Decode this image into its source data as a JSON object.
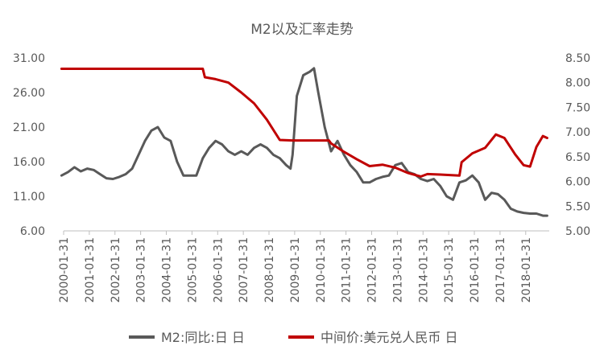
{
  "chart_data": {
    "type": "line",
    "title": "M2以及汇率走势",
    "x_tick_labels": [
      "2000-01-31",
      "2001-01-31",
      "2002-01-31",
      "2003-01-31",
      "2004-01-31",
      "2005-01-31",
      "2006-01-31",
      "2007-01-31",
      "2008-01-31",
      "2009-01-31",
      "2010-01-31",
      "2011-01-31",
      "2012-01-31",
      "2013-01-31",
      "2014-01-31",
      "2015-01-31",
      "2016-01-31",
      "2017-01-31",
      "2018-01-31"
    ],
    "xlim": [
      "2000-01-31",
      "2018-12-31"
    ],
    "y_left": {
      "ticks": [
        "31.00",
        "26.00",
        "21.00",
        "16.00",
        "11.00",
        "6.00"
      ],
      "range": [
        6,
        31
      ]
    },
    "y_right": {
      "ticks": [
        "8.50",
        "8.00",
        "7.50",
        "7.00",
        "6.50",
        "6.00",
        "5.50",
        "5.00"
      ],
      "range": [
        5,
        8.5
      ]
    },
    "grid": false,
    "legend_position": "bottom",
    "series": [
      {
        "name": "M2:同比:日 日",
        "axis": "left",
        "color": "#595959",
        "points": [
          [
            "2000-01",
            14.0
          ],
          [
            "2000-04",
            14.5
          ],
          [
            "2000-07",
            15.2
          ],
          [
            "2000-10",
            14.6
          ],
          [
            "2001-01",
            15.0
          ],
          [
            "2001-04",
            14.8
          ],
          [
            "2001-07",
            14.2
          ],
          [
            "2001-10",
            13.6
          ],
          [
            "2002-01",
            13.5
          ],
          [
            "2002-04",
            13.8
          ],
          [
            "2002-07",
            14.2
          ],
          [
            "2002-10",
            15.0
          ],
          [
            "2003-01",
            17.0
          ],
          [
            "2003-04",
            19.0
          ],
          [
            "2003-07",
            20.5
          ],
          [
            "2003-10",
            21.0
          ],
          [
            "2004-01",
            19.5
          ],
          [
            "2004-04",
            19.0
          ],
          [
            "2004-07",
            16.0
          ],
          [
            "2004-10",
            14.0
          ],
          [
            "2005-01",
            14.0
          ],
          [
            "2005-04",
            14.0
          ],
          [
            "2005-07",
            16.5
          ],
          [
            "2005-10",
            18.0
          ],
          [
            "2006-01",
            19.0
          ],
          [
            "2006-04",
            18.5
          ],
          [
            "2006-07",
            17.5
          ],
          [
            "2006-10",
            17.0
          ],
          [
            "2007-01",
            17.5
          ],
          [
            "2007-04",
            17.0
          ],
          [
            "2007-07",
            18.0
          ],
          [
            "2007-10",
            18.5
          ],
          [
            "2008-01",
            18.0
          ],
          [
            "2008-04",
            17.0
          ],
          [
            "2008-07",
            16.5
          ],
          [
            "2008-10",
            15.5
          ],
          [
            "2008-12",
            15.0
          ],
          [
            "2009-01",
            17.0
          ],
          [
            "2009-03",
            25.5
          ],
          [
            "2009-06",
            28.5
          ],
          [
            "2009-09",
            29.0
          ],
          [
            "2009-11",
            29.5
          ],
          [
            "2010-01",
            26.0
          ],
          [
            "2010-04",
            21.0
          ],
          [
            "2010-07",
            17.5
          ],
          [
            "2010-10",
            19.0
          ],
          [
            "2011-01",
            17.0
          ],
          [
            "2011-04",
            15.5
          ],
          [
            "2011-07",
            14.5
          ],
          [
            "2011-10",
            13.0
          ],
          [
            "2012-01",
            13.0
          ],
          [
            "2012-04",
            13.5
          ],
          [
            "2012-07",
            13.8
          ],
          [
            "2012-10",
            14.0
          ],
          [
            "2013-01",
            15.5
          ],
          [
            "2013-04",
            15.8
          ],
          [
            "2013-07",
            14.5
          ],
          [
            "2013-10",
            14.2
          ],
          [
            "2014-01",
            13.5
          ],
          [
            "2014-04",
            13.2
          ],
          [
            "2014-07",
            13.5
          ],
          [
            "2014-10",
            12.5
          ],
          [
            "2015-01",
            11.0
          ],
          [
            "2015-04",
            10.5
          ],
          [
            "2015-07",
            13.0
          ],
          [
            "2015-10",
            13.3
          ],
          [
            "2016-01",
            14.0
          ],
          [
            "2016-04",
            13.0
          ],
          [
            "2016-07",
            10.5
          ],
          [
            "2016-10",
            11.5
          ],
          [
            "2017-01",
            11.3
          ],
          [
            "2017-04",
            10.5
          ],
          [
            "2017-07",
            9.2
          ],
          [
            "2017-10",
            8.8
          ],
          [
            "2018-01",
            8.6
          ],
          [
            "2018-04",
            8.5
          ],
          [
            "2018-07",
            8.5
          ],
          [
            "2018-10",
            8.2
          ],
          [
            "2018-12",
            8.2
          ]
        ]
      },
      {
        "name": "中间价:美元兑人民币 日",
        "axis": "right",
        "color": "#c00000",
        "points": [
          [
            "2000-01",
            8.28
          ],
          [
            "2005-07",
            8.28
          ],
          [
            "2005-08",
            8.11
          ],
          [
            "2006-01",
            8.07
          ],
          [
            "2006-07",
            8.0
          ],
          [
            "2007-01",
            7.8
          ],
          [
            "2007-07",
            7.58
          ],
          [
            "2008-01",
            7.25
          ],
          [
            "2008-07",
            6.84
          ],
          [
            "2009-01",
            6.83
          ],
          [
            "2010-06",
            6.83
          ],
          [
            "2010-07",
            6.77
          ],
          [
            "2011-01",
            6.6
          ],
          [
            "2011-07",
            6.45
          ],
          [
            "2012-01",
            6.31
          ],
          [
            "2012-07",
            6.34
          ],
          [
            "2013-01",
            6.28
          ],
          [
            "2013-07",
            6.17
          ],
          [
            "2014-01",
            6.1
          ],
          [
            "2014-04",
            6.15
          ],
          [
            "2014-10",
            6.14
          ],
          [
            "2015-07",
            6.12
          ],
          [
            "2015-08",
            6.39
          ],
          [
            "2016-01",
            6.57
          ],
          [
            "2016-07",
            6.68
          ],
          [
            "2016-12",
            6.95
          ],
          [
            "2017-04",
            6.88
          ],
          [
            "2017-09",
            6.55
          ],
          [
            "2018-01",
            6.33
          ],
          [
            "2018-04",
            6.3
          ],
          [
            "2018-07",
            6.7
          ],
          [
            "2018-10",
            6.92
          ],
          [
            "2018-12",
            6.88
          ]
        ]
      }
    ]
  }
}
